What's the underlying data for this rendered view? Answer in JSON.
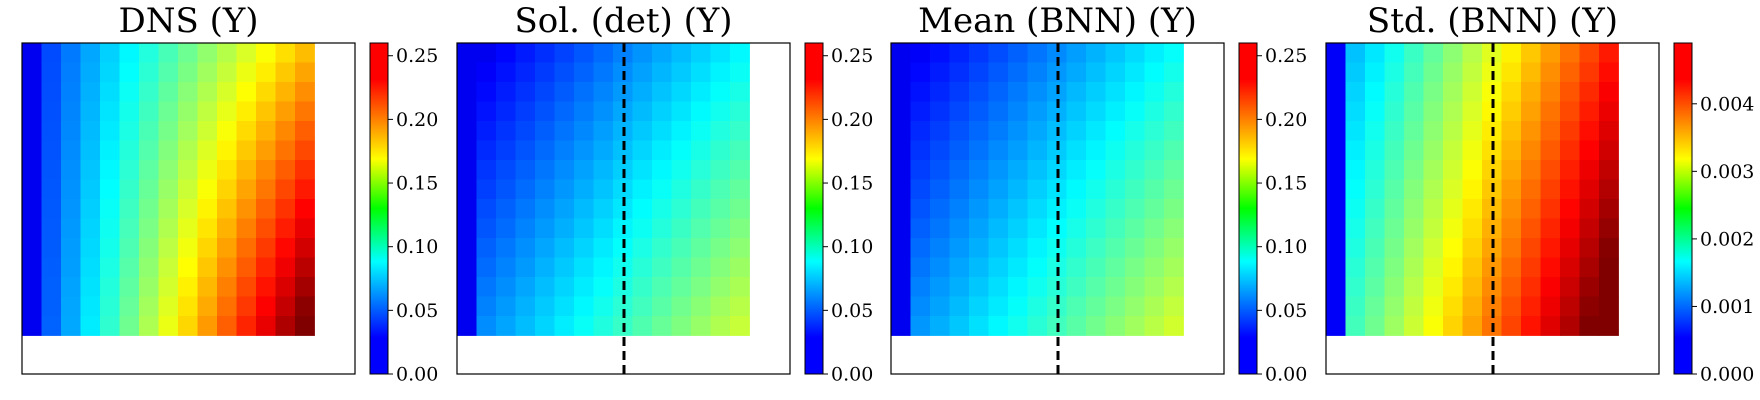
{
  "figure": {
    "colormap": "jet",
    "cell_count": 15,
    "divider_style": "dashed black vertical line"
  },
  "chart_data": [
    {
      "type": "heatmap",
      "title": "DNS (Y)",
      "colorbar": {
        "vmin": 0.0,
        "vmax": 0.26,
        "ticks": [
          0.0,
          0.05,
          0.1,
          0.15,
          0.2,
          0.25
        ],
        "tick_labels": [
          "0.00",
          "0.05",
          "0.10",
          "0.15",
          "0.20",
          "0.25"
        ]
      },
      "divider": false,
      "model": "dns"
    },
    {
      "type": "heatmap",
      "title": "Sol. (det) (Y)",
      "colorbar": {
        "vmin": 0.0,
        "vmax": 0.26,
        "ticks": [
          0.0,
          0.05,
          0.1,
          0.15,
          0.2,
          0.25
        ],
        "tick_labels": [
          "0.00",
          "0.05",
          "0.10",
          "0.15",
          "0.20",
          "0.25"
        ]
      },
      "divider": true,
      "model": "sol"
    },
    {
      "type": "heatmap",
      "title": "Mean (BNN) (Y)",
      "colorbar": {
        "vmin": 0.0,
        "vmax": 0.26,
        "ticks": [
          0.0,
          0.05,
          0.1,
          0.15,
          0.2,
          0.25
        ],
        "tick_labels": [
          "0.00",
          "0.05",
          "0.10",
          "0.15",
          "0.20",
          "0.25"
        ]
      },
      "divider": true,
      "model": "mean"
    },
    {
      "type": "heatmap",
      "title": "Std. (BNN) (Y)",
      "colorbar": {
        "vmin": 0.0,
        "vmax": 0.0049,
        "ticks": [
          0.0,
          0.001,
          0.002,
          0.003,
          0.004
        ],
        "tick_labels": [
          "0.000",
          "0.001",
          "0.002",
          "0.003",
          "0.004"
        ]
      },
      "divider": true,
      "model": "std"
    }
  ]
}
